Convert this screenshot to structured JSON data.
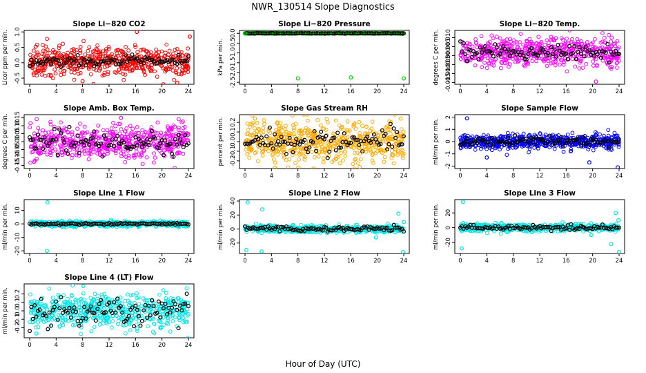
{
  "title": "NWR_130514  Slope Diagnostics",
  "xlabel": "Hour of Day (UTC)",
  "chart_data": [
    {
      "type": "scatter",
      "title": "Slope Li−820 CO2",
      "ylabel": "Licor ppm per min.",
      "xlim": [
        0,
        24
      ],
      "ylim": [
        -0.7,
        1.05
      ],
      "xticks": [
        "0",
        "4",
        "8",
        "12",
        "16",
        "20",
        "24"
      ],
      "yticks": [
        {
          "v": -0.5,
          "label": "-0.5"
        },
        {
          "v": 0.0,
          "label": "0.0"
        },
        {
          "v": 0.5,
          "label": "0.5"
        },
        {
          "v": 1.0,
          "label": "1.0"
        }
      ],
      "colors": {
        "main": "#ff0000",
        "hourly": "#000000"
      },
      "mean": 0.05,
      "spread": 0.22,
      "hourly_spread": 0.08,
      "outliers": [
        {
          "x": 16.2,
          "y": 1.0
        },
        {
          "x": 24.2,
          "y": 0.85
        },
        {
          "x": 22.3,
          "y": -0.65
        },
        {
          "x": 8.0,
          "y": -0.6
        }
      ]
    },
    {
      "type": "scatter",
      "title": "Slope Li−820 Pressure",
      "ylabel": "kPa per min.",
      "xlim": [
        0,
        24
      ],
      "ylim": [
        -2.6,
        0.15
      ],
      "xticks": [
        "0",
        "4",
        "8",
        "12",
        "16",
        "20",
        "24"
      ],
      "yticks": [
        {
          "v": -2.5,
          "label": "-2.5"
        },
        {
          "v": -2.0,
          "label": "-2.0"
        },
        {
          "v": -1.5,
          "label": "-1.5"
        },
        {
          "v": -1.0,
          "label": "-1.0"
        },
        {
          "v": -0.5,
          "label": "-0.5"
        },
        {
          "v": 0.0,
          "label": "0.0"
        }
      ],
      "colors": {
        "main": "#00cc00",
        "hourly": "#000000"
      },
      "mean": 0.0,
      "spread": 0.01,
      "hourly_spread": 0.005,
      "outliers": [
        {
          "x": 8.0,
          "y": -2.3
        },
        {
          "x": 16.0,
          "y": -2.25
        },
        {
          "x": 24.0,
          "y": -2.3
        },
        {
          "x": 0.0,
          "y": 0.0
        }
      ]
    },
    {
      "type": "scatter",
      "title": "Slope Li−820 Temp.",
      "ylabel": "degrees C per min.",
      "xlim": [
        0,
        24
      ],
      "ylim": [
        -0.016,
        0.014
      ],
      "xticks": [
        "0",
        "4",
        "8",
        "12",
        "16",
        "20",
        "24"
      ],
      "yticks": [
        {
          "v": -0.015,
          "label": "-0.015"
        },
        {
          "v": -0.01,
          "label": "-0.010"
        },
        {
          "v": -0.005,
          "label": "-0.005"
        },
        {
          "v": 0.0,
          "label": "0.000"
        },
        {
          "v": 0.005,
          "label": "0.005"
        },
        {
          "v": 0.01,
          "label": "0.010"
        }
      ],
      "colors": {
        "main": "#ff00ff",
        "hourly": "#000000"
      },
      "mean": 0.002,
      "spread": 0.004,
      "hourly_spread": 0.002,
      "outliers": [
        {
          "x": 20.5,
          "y": -0.0145
        },
        {
          "x": 14.0,
          "y": 0.009
        }
      ]
    },
    {
      "type": "scatter",
      "title": "Slope Amb. Box Temp.",
      "ylabel": "degrees C per min.",
      "xlim": [
        0,
        24
      ],
      "ylim": [
        -0.17,
        0.17
      ],
      "xticks": [
        "0",
        "4",
        "8",
        "12",
        "16",
        "20",
        "24"
      ],
      "yticks": [
        {
          "v": -0.15,
          "label": "-0.15"
        },
        {
          "v": -0.1,
          "label": "-0.10"
        },
        {
          "v": -0.05,
          "label": "-0.05"
        },
        {
          "v": 0.0,
          "label": "0.00"
        },
        {
          "v": 0.05,
          "label": "0.05"
        },
        {
          "v": 0.1,
          "label": "0.10"
        },
        {
          "v": 0.15,
          "label": "0.15"
        }
      ],
      "colors": {
        "main": "#ff00ff",
        "hourly": "#000000"
      },
      "mean": 0.0,
      "spread": 0.055,
      "hourly_spread": 0.04,
      "outliers": [
        {
          "x": 13.8,
          "y": 0.15
        },
        {
          "x": 0.8,
          "y": -0.12
        }
      ]
    },
    {
      "type": "scatter",
      "title": "Slope Gas Stream RH",
      "ylabel": "percent per min.",
      "xlim": [
        0,
        24
      ],
      "ylim": [
        -0.28,
        0.28
      ],
      "xticks": [
        "0",
        "4",
        "8",
        "12",
        "16",
        "20",
        "24"
      ],
      "yticks": [
        {
          "v": -0.2,
          "label": "-0.2"
        },
        {
          "v": -0.1,
          "label": "-0.1"
        },
        {
          "v": 0.0,
          "label": "0.0"
        },
        {
          "v": 0.1,
          "label": "0.1"
        },
        {
          "v": 0.2,
          "label": "0.2"
        }
      ],
      "colors": {
        "main": "#ffaa00",
        "hourly": "#000000"
      },
      "mean": 0.0,
      "spread": 0.1,
      "hourly_spread": 0.06,
      "outliers": [
        {
          "x": 4.5,
          "y": -0.27
        },
        {
          "x": 1.5,
          "y": 0.24
        }
      ]
    },
    {
      "type": "scatter",
      "title": "Slope Sample Flow",
      "ylabel": "ml/min per min.",
      "xlim": [
        0,
        24
      ],
      "ylim": [
        -2.2,
        2.2
      ],
      "xticks": [
        "0",
        "4",
        "8",
        "12",
        "16",
        "20",
        "24"
      ],
      "yticks": [
        {
          "v": -2,
          "label": "-2"
        },
        {
          "v": -1,
          "label": "-1"
        },
        {
          "v": 0,
          "label": "0"
        },
        {
          "v": 1,
          "label": "1"
        },
        {
          "v": 2,
          "label": "2"
        }
      ],
      "colors": {
        "main": "#0000ff",
        "hourly": "#000000"
      },
      "mean": 0.0,
      "spread": 0.3,
      "hourly_spread": 0.2,
      "outliers": [
        {
          "x": 1.0,
          "y": 1.9
        },
        {
          "x": 23.8,
          "y": -2.1
        },
        {
          "x": 19.5,
          "y": -1.7
        },
        {
          "x": 4.0,
          "y": -1.3
        }
      ]
    },
    {
      "type": "scatter",
      "title": "Slope Line 1 Flow",
      "ylabel": "ml/min per min.",
      "xlim": [
        0,
        24
      ],
      "ylim": [
        -22,
        18
      ],
      "xticks": [
        "0",
        "4",
        "8",
        "12",
        "16",
        "20",
        "24"
      ],
      "yticks": [
        {
          "v": -20,
          "label": "-20"
        },
        {
          "v": -10,
          "label": "-10"
        },
        {
          "v": 0,
          "label": "0"
        },
        {
          "v": 10,
          "label": "10"
        }
      ],
      "colors": {
        "main": "#00e5e5",
        "hourly": "#000000"
      },
      "mean": 0.0,
      "spread": 1.0,
      "hourly_spread": 0.4,
      "outliers": [
        {
          "x": 2.7,
          "y": 16
        },
        {
          "x": 2.6,
          "y": -20
        }
      ]
    },
    {
      "type": "scatter",
      "title": "Slope Line 2 Flow",
      "ylabel": "ml/min per min.",
      "xlim": [
        0,
        24
      ],
      "ylim": [
        -35,
        42
      ],
      "xticks": [
        "0",
        "4",
        "8",
        "12",
        "16",
        "20",
        "24"
      ],
      "yticks": [
        {
          "v": -20,
          "label": "-20"
        },
        {
          "v": 0,
          "label": "0"
        },
        {
          "v": 20,
          "label": "20"
        },
        {
          "v": 40,
          "label": "40"
        }
      ],
      "colors": {
        "main": "#00e5e5",
        "hourly": "#000000"
      },
      "mean": 0.0,
      "spread": 2.5,
      "hourly_spread": 2.0,
      "outliers": [
        {
          "x": 0.4,
          "y": 38
        },
        {
          "x": 2.6,
          "y": 28
        },
        {
          "x": 0.2,
          "y": -30
        },
        {
          "x": 2.5,
          "y": -32
        },
        {
          "x": 23.9,
          "y": -33
        },
        {
          "x": 19.8,
          "y": -12
        },
        {
          "x": 23.2,
          "y": 22
        },
        {
          "x": 24.0,
          "y": 10
        }
      ]
    },
    {
      "type": "scatter",
      "title": "Slope Line 3 Flow",
      "ylabel": "ml/min per min.",
      "xlim": [
        0,
        24
      ],
      "ylim": [
        -35,
        38
      ],
      "xticks": [
        "0",
        "4",
        "8",
        "12",
        "16",
        "20",
        "24"
      ],
      "yticks": [
        {
          "v": -20,
          "label": "-20"
        },
        {
          "v": 0,
          "label": "0"
        },
        {
          "v": 20,
          "label": "20"
        }
      ],
      "colors": {
        "main": "#00e5e5",
        "hourly": "#000000"
      },
      "mean": 0.0,
      "spread": 2.5,
      "hourly_spread": 1.5,
      "outliers": [
        {
          "x": 0.4,
          "y": 35
        },
        {
          "x": 0.2,
          "y": -28
        },
        {
          "x": 24.0,
          "y": -33
        },
        {
          "x": 23.5,
          "y": 20
        },
        {
          "x": 23.9,
          "y": 10
        },
        {
          "x": 22.8,
          "y": -22
        },
        {
          "x": 19.8,
          "y": -10
        }
      ]
    },
    {
      "type": "scatter",
      "title": "Slope Line 4 (LT) Flow",
      "ylabel": "ml/min per min.",
      "xlim": [
        0,
        24
      ],
      "ylim": [
        -0.32,
        0.32
      ],
      "xticks": [
        "0",
        "4",
        "8",
        "12",
        "16",
        "20",
        "24"
      ],
      "yticks": [
        {
          "v": -0.2,
          "label": "-0.2"
        },
        {
          "v": -0.1,
          "label": "-0.1"
        },
        {
          "v": 0.0,
          "label": "0.0"
        },
        {
          "v": 0.1,
          "label": "0.1"
        },
        {
          "v": 0.2,
          "label": "0.2"
        }
      ],
      "colors": {
        "main": "#00e5e5",
        "hourly": "#000000"
      },
      "mean": 0.0,
      "spread": 0.1,
      "hourly_spread": 0.09,
      "outliers": [
        {
          "x": 6.5,
          "y": 0.3
        },
        {
          "x": 1.0,
          "y": -0.27
        }
      ]
    }
  ]
}
